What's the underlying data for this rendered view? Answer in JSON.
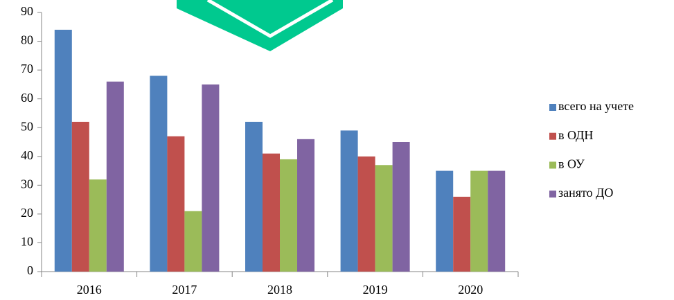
{
  "chart_data": {
    "type": "bar",
    "categories": [
      "2016",
      "2017",
      "2018",
      "2019",
      "2020"
    ],
    "series": [
      {
        "name": "всего на учете",
        "color": "#4f81bd",
        "values": [
          84,
          68,
          52,
          49,
          35
        ]
      },
      {
        "name": "в ОДН",
        "color": "#c0504d",
        "values": [
          52,
          47,
          41,
          40,
          26
        ]
      },
      {
        "name": "в ОУ",
        "color": "#9bbb59",
        "values": [
          32,
          21,
          39,
          37,
          35
        ]
      },
      {
        "name": "занято ДО",
        "color": "#8064a2",
        "values": [
          66,
          65,
          46,
          45,
          35
        ]
      }
    ],
    "ylim": [
      0,
      90
    ],
    "yticks": [
      0,
      10,
      20,
      30,
      40,
      50,
      60,
      70,
      80,
      90
    ],
    "grid": false,
    "legend": "right"
  }
}
